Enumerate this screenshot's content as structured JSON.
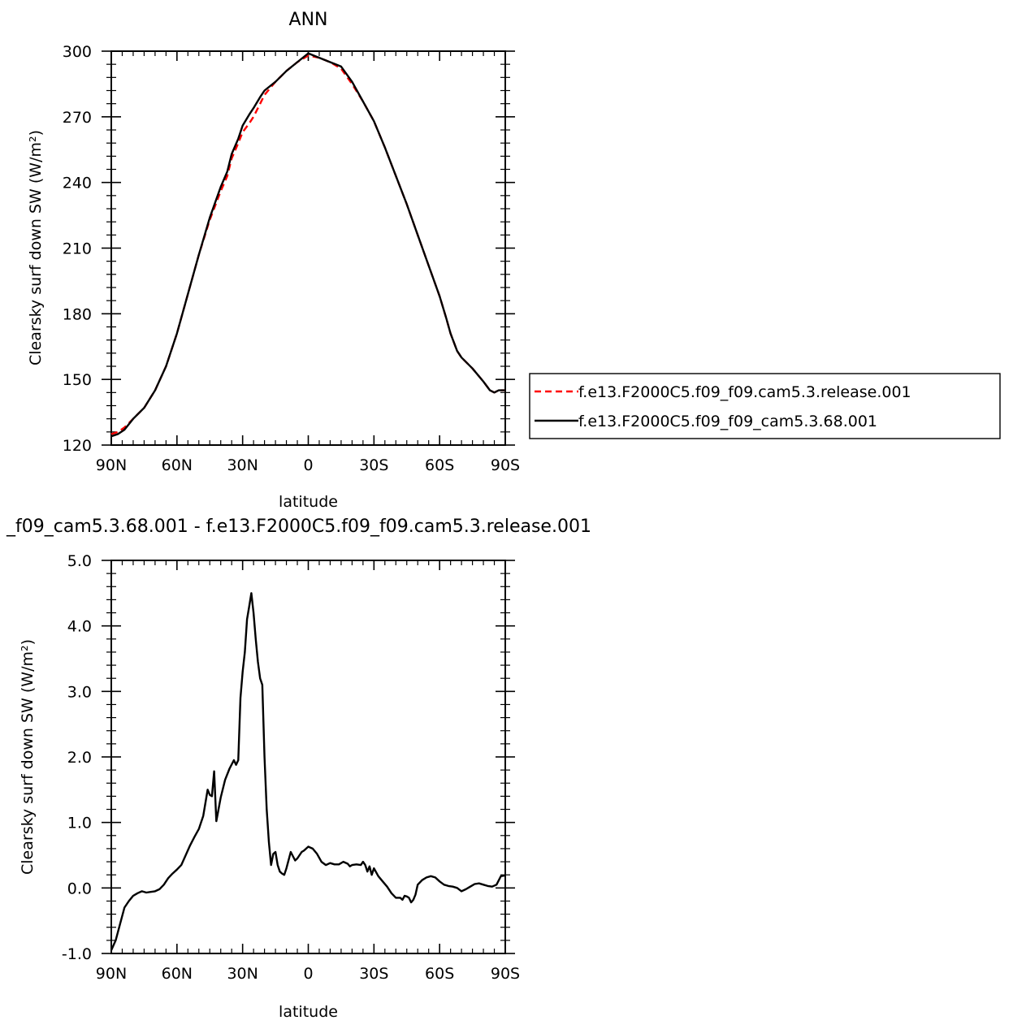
{
  "chart_data": [
    {
      "type": "line",
      "title": "ANN",
      "xlabel": "latitude",
      "ylabel": "Clearsky surf down SW (W/m²)",
      "xlim": [
        90,
        -90
      ],
      "ylim": [
        120,
        300
      ],
      "x_ticks": [
        90,
        60,
        30,
        0,
        -30,
        -60,
        -90
      ],
      "x_tick_labels": [
        "90N",
        "60N",
        "30N",
        "0",
        "30S",
        "60S",
        "90S"
      ],
      "y_ticks": [
        120,
        150,
        180,
        210,
        240,
        270,
        300
      ],
      "y_tick_labels": [
        "120",
        "150",
        "180",
        "210",
        "240",
        "270",
        "300"
      ],
      "grid": false,
      "legend_position": "right",
      "series": [
        {
          "name": "f.e13.F2000C5.f09_f09.cam5.3.release.001",
          "color": "#ff0000",
          "dash": "dashed",
          "x": [
            90,
            87,
            84,
            80,
            75,
            70,
            65,
            60,
            55,
            50,
            45,
            40,
            37,
            35,
            32,
            30,
            27,
            25,
            22,
            20,
            15,
            10,
            5,
            0,
            -5,
            -10,
            -15,
            -20,
            -25,
            -30,
            -35,
            -40,
            -45,
            -50,
            -55,
            -60,
            -63,
            -65,
            -68,
            -70,
            -75,
            -80,
            -83,
            -85,
            -87,
            -90
          ],
          "values": [
            125,
            126,
            128,
            132,
            137,
            145,
            156,
            171,
            189,
            207,
            223,
            236,
            243,
            251,
            258,
            263,
            267,
            270,
            276,
            280,
            286,
            291,
            295,
            298,
            297,
            295,
            292,
            285,
            277,
            268,
            256,
            243,
            230,
            216,
            202,
            188,
            178,
            171,
            163,
            160,
            155,
            149,
            145,
            144,
            145,
            145
          ]
        },
        {
          "name": "f.e13.F2000C5.f09_f09_cam5.3.68.001",
          "color": "#000000",
          "dash": "solid",
          "x": [
            90,
            87,
            84,
            80,
            75,
            70,
            65,
            60,
            55,
            50,
            45,
            40,
            37,
            35,
            32,
            30,
            27,
            25,
            22,
            20,
            15,
            10,
            5,
            0,
            -5,
            -10,
            -15,
            -20,
            -25,
            -30,
            -35,
            -40,
            -45,
            -50,
            -55,
            -60,
            -63,
            -65,
            -68,
            -70,
            -75,
            -80,
            -83,
            -85,
            -87,
            -90
          ],
          "values": [
            124,
            125,
            127,
            132,
            137,
            145,
            156,
            171,
            189,
            207,
            224,
            238,
            245,
            253,
            260,
            266,
            271,
            274,
            279,
            282,
            286,
            291,
            295,
            299,
            297,
            295,
            293,
            286,
            277,
            268,
            256,
            243,
            230,
            216,
            202,
            188,
            178,
            171,
            163,
            160,
            155,
            149,
            145,
            144,
            145,
            145
          ]
        }
      ]
    },
    {
      "type": "line",
      "title": "_f09_cam5.3.68.001 - f.e13.F2000C5.f09_f09.cam5.3.release.001",
      "xlabel": "latitude",
      "ylabel": "Clearsky surf down SW (W/m²)",
      "xlim": [
        90,
        -90
      ],
      "ylim": [
        -1.0,
        5.0
      ],
      "x_ticks": [
        90,
        60,
        30,
        0,
        -30,
        -60,
        -90
      ],
      "x_tick_labels": [
        "90N",
        "60N",
        "30N",
        "0",
        "30S",
        "60S",
        "90S"
      ],
      "y_ticks": [
        -1.0,
        0.0,
        1.0,
        2.0,
        3.0,
        4.0,
        5.0
      ],
      "y_tick_labels": [
        "-1.0",
        "0.0",
        "1.0",
        "2.0",
        "3.0",
        "4.0",
        "5.0"
      ],
      "grid": false,
      "series": [
        {
          "color": "#000000",
          "dash": "solid",
          "x": [
            90,
            88,
            86,
            84,
            82,
            80,
            78,
            76,
            74,
            72,
            70,
            68,
            66,
            64,
            62,
            60,
            58,
            56,
            54,
            52,
            50,
            48,
            47,
            46,
            45,
            44,
            43,
            42,
            41,
            40,
            38,
            36,
            34,
            33,
            32,
            31,
            30,
            29,
            28,
            27,
            26,
            25,
            24,
            23,
            22,
            21,
            20,
            19,
            18,
            17,
            16,
            15,
            14,
            13,
            12,
            11,
            10,
            8,
            6,
            5,
            4,
            3,
            2,
            0,
            -2,
            -4,
            -6,
            -8,
            -10,
            -12,
            -14,
            -16,
            -18,
            -19,
            -20,
            -22,
            -24,
            -25,
            -26,
            -27,
            -28,
            -29,
            -30,
            -32,
            -34,
            -36,
            -38,
            -40,
            -42,
            -43,
            -44,
            -45,
            -46,
            -47,
            -48,
            -49,
            -50,
            -52,
            -54,
            -56,
            -58,
            -60,
            -62,
            -64,
            -66,
            -68,
            -70,
            -72,
            -74,
            -76,
            -78,
            -80,
            -82,
            -84,
            -86,
            -88,
            -90
          ],
          "values": [
            -0.95,
            -0.8,
            -0.55,
            -0.3,
            -0.2,
            -0.12,
            -0.08,
            -0.05,
            -0.07,
            -0.06,
            -0.05,
            -0.02,
            0.05,
            0.15,
            0.22,
            0.28,
            0.35,
            0.5,
            0.65,
            0.78,
            0.9,
            1.1,
            1.3,
            1.5,
            1.42,
            1.4,
            1.78,
            1.02,
            1.2,
            1.38,
            1.65,
            1.82,
            1.95,
            1.88,
            1.95,
            2.9,
            3.3,
            3.6,
            4.1,
            4.3,
            4.5,
            4.2,
            3.8,
            3.45,
            3.2,
            3.1,
            2.0,
            1.2,
            0.7,
            0.35,
            0.52,
            0.55,
            0.35,
            0.25,
            0.22,
            0.2,
            0.3,
            0.55,
            0.42,
            0.45,
            0.5,
            0.55,
            0.57,
            0.63,
            0.6,
            0.52,
            0.4,
            0.35,
            0.38,
            0.36,
            0.36,
            0.4,
            0.37,
            0.33,
            0.35,
            0.36,
            0.35,
            0.4,
            0.35,
            0.25,
            0.33,
            0.2,
            0.3,
            0.18,
            0.1,
            0.02,
            -0.08,
            -0.15,
            -0.15,
            -0.18,
            -0.12,
            -0.13,
            -0.15,
            -0.22,
            -0.18,
            -0.1,
            0.05,
            0.12,
            0.16,
            0.18,
            0.16,
            0.1,
            0.05,
            0.03,
            0.02,
            0.0,
            -0.05,
            -0.02,
            0.02,
            0.06,
            0.07,
            0.05,
            0.03,
            0.02,
            0.05,
            0.18,
            0.19
          ]
        }
      ]
    }
  ]
}
